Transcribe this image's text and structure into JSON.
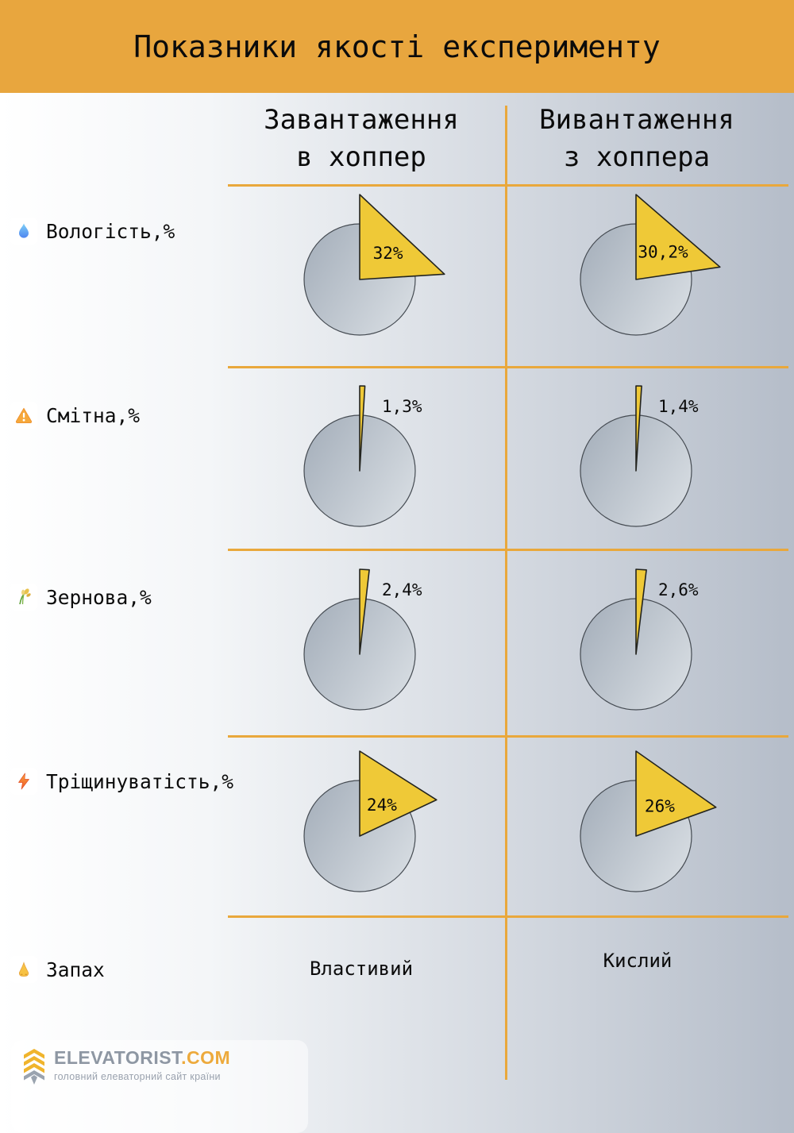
{
  "header": {
    "title": "Показники якості експерименту"
  },
  "columns": [
    {
      "line1": "Завантаження",
      "line2": "в хоппер"
    },
    {
      "line1": "Вивантаження",
      "line2": "з хоппера"
    }
  ],
  "rows": [
    {
      "label": "Вологість,%",
      "icon": "droplet-icon",
      "values": [
        "32%",
        "30,2%"
      ],
      "pct": [
        32,
        30.2
      ]
    },
    {
      "label": "Смітна,%",
      "icon": "warning-icon",
      "values": [
        "1,3%",
        "1,4%"
      ],
      "pct": [
        1.3,
        1.4
      ]
    },
    {
      "label": "Зернова,%",
      "icon": "grain-icon",
      "values": [
        "2,4%",
        "2,6%"
      ],
      "pct": [
        2.4,
        2.6
      ]
    },
    {
      "label": "Тріщинуватість,%",
      "icon": "lightning-icon",
      "values": [
        "24%",
        "26%"
      ],
      "pct": [
        24,
        26
      ]
    },
    {
      "label": "Запах",
      "icon": "nose-icon",
      "values": [
        "Властивий",
        "Кислий"
      ],
      "pct": null
    }
  ],
  "footer": {
    "brand": "ELEVATORIST",
    "brand_suffix": ".COM",
    "tagline": "головний елеваторний сайт країни"
  },
  "colors": {
    "banner_orange": "#E8A63E",
    "line_orange": "#E9A83C",
    "wedge_yellow": "#EFC937",
    "wedge_stroke": "#23241f",
    "circle_dark": "#A3ADB9",
    "circle_light": "#D3D9DF",
    "circle_stroke": "#454B52",
    "brand_gray": "#8E97A3",
    "brand_orange": "#EDAA3C",
    "bg_right_gray": "#B5BDC9"
  },
  "chart_data": {
    "type": "pie",
    "title": "Показники якості експерименту",
    "columns": [
      "Завантаження в хоппер",
      "Вивантаження з хоппера"
    ],
    "rows": [
      {
        "metric": "Вологість,%",
        "values": [
          32,
          30.2
        ],
        "value_labels": [
          "32%",
          "30,2%"
        ]
      },
      {
        "metric": "Смітна,%",
        "values": [
          1.3,
          1.4
        ],
        "value_labels": [
          "1,3%",
          "1,4%"
        ]
      },
      {
        "metric": "Зернова,%",
        "values": [
          2.4,
          2.6
        ],
        "value_labels": [
          "2,4%",
          "2,6%"
        ]
      },
      {
        "metric": "Тріщинуватість,%",
        "values": [
          24,
          26
        ],
        "value_labels": [
          "24%",
          "26%"
        ]
      },
      {
        "metric": "Запах",
        "values": [
          "Властивий",
          "Кислий"
        ]
      }
    ]
  }
}
